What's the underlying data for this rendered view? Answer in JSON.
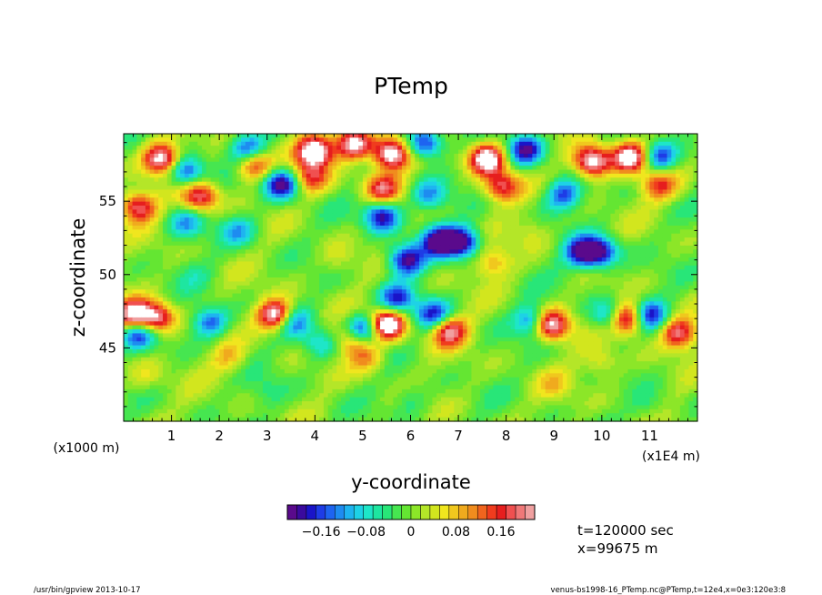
{
  "chart_data": {
    "type": "heatmap",
    "title": "PTemp",
    "xlabel": "y-coordinate",
    "ylabel": "z-coordinate",
    "x_unit_left": "(x1000 m)",
    "x_unit_right": "(x1E4 m)",
    "x_ticks": [
      "1",
      "2",
      "3",
      "4",
      "5",
      "6",
      "7",
      "8",
      "9",
      "10",
      "11"
    ],
    "y_ticks": [
      "45",
      "50",
      "55"
    ],
    "xlim": [
      0,
      12
    ],
    "ylim": [
      40,
      59.6
    ],
    "colorbar": {
      "ticks": [
        "-0.16",
        "-0.08",
        "0",
        "0.08",
        "0.16"
      ],
      "range": [
        -0.22,
        0.22
      ],
      "colors": [
        "#5a0a8c",
        "#3a0a9e",
        "#1a14c8",
        "#1e3ce6",
        "#1e64f0",
        "#1e8cf0",
        "#1eb4f0",
        "#1ed2e6",
        "#1ee6c8",
        "#1ee6a0",
        "#28e678",
        "#46e650",
        "#64e632",
        "#8ce628",
        "#b4e628",
        "#d2e61e",
        "#f0e61e",
        "#f0c81e",
        "#f0aa1e",
        "#f08c1e",
        "#f0641e",
        "#f03c1e",
        "#e61e1e",
        "#f05050",
        "#f07878",
        "#f0a0a0"
      ]
    },
    "features": [
      {
        "y": 5.5,
        "z": 46.6,
        "v": 0.3
      },
      {
        "y": 8.9,
        "z": 46.6,
        "v": 0.3
      },
      {
        "y": 10.5,
        "z": 47.0,
        "v": 0.3
      },
      {
        "y": 3.2,
        "z": 47.2,
        "v": 0.3
      },
      {
        "y": 4.0,
        "z": 58.4,
        "v": 0.3
      },
      {
        "y": 5.6,
        "z": 58.2,
        "v": 0.28
      },
      {
        "y": 4.8,
        "z": 58.9,
        "v": 0.25
      },
      {
        "y": 7.6,
        "z": 57.9,
        "v": 0.28
      },
      {
        "y": 9.8,
        "z": 57.7,
        "v": 0.28
      },
      {
        "y": 10.6,
        "z": 58.0,
        "v": 0.25
      },
      {
        "y": 0.8,
        "z": 57.9,
        "v": 0.25
      },
      {
        "y": 2.7,
        "z": 57.6,
        "v": 0.22
      },
      {
        "y": 5.4,
        "z": 55.9,
        "v": 0.18
      },
      {
        "y": 7.9,
        "z": 56.0,
        "v": 0.18
      },
      {
        "y": 3.9,
        "z": 56.6,
        "v": 0.15
      },
      {
        "y": 11.2,
        "z": 56.1,
        "v": 0.15
      },
      {
        "y": 1.6,
        "z": 55.3,
        "v": 0.2
      },
      {
        "y": 0.3,
        "z": 54.6,
        "v": 0.2
      },
      {
        "y": 0.2,
        "z": 47.2,
        "v": 0.25
      },
      {
        "y": 0.7,
        "z": 47.0,
        "v": 0.22
      },
      {
        "y": 6.8,
        "z": 46.2,
        "v": 0.22
      },
      {
        "y": 11.6,
        "z": 46.0,
        "v": 0.2
      },
      {
        "y": 4.8,
        "z": 45.6,
        "v": 0.16
      },
      {
        "y": 7.7,
        "z": 50.8,
        "v": 0.1
      },
      {
        "y": 5.1,
        "z": 44.3,
        "v": 0.1
      },
      {
        "y": 2.6,
        "z": 58.4,
        "v": -0.2
      },
      {
        "y": 6.3,
        "z": 58.9,
        "v": -0.2
      },
      {
        "y": 8.4,
        "z": 58.5,
        "v": -0.2
      },
      {
        "y": 11.2,
        "z": 58.0,
        "v": -0.18
      },
      {
        "y": 1.3,
        "z": 57.0,
        "v": -0.18
      },
      {
        "y": 3.3,
        "z": 56.2,
        "v": -0.22
      },
      {
        "y": 6.4,
        "z": 55.4,
        "v": -0.12
      },
      {
        "y": 9.2,
        "z": 55.4,
        "v": -0.15
      },
      {
        "y": 5.4,
        "z": 54.0,
        "v": -0.2
      },
      {
        "y": 5.9,
        "z": 51.0,
        "v": -0.22
      },
      {
        "y": 6.6,
        "z": 52.3,
        "v": -0.22
      },
      {
        "y": 7.1,
        "z": 52.2,
        "v": -0.2
      },
      {
        "y": 9.6,
        "z": 51.5,
        "v": -0.2
      },
      {
        "y": 10.0,
        "z": 51.5,
        "v": -0.18
      },
      {
        "y": 5.7,
        "z": 48.3,
        "v": -0.16
      },
      {
        "y": 5.0,
        "z": 46.2,
        "v": -0.24
      },
      {
        "y": 6.5,
        "z": 47.2,
        "v": -0.18
      },
      {
        "y": 8.6,
        "z": 46.8,
        "v": -0.2
      },
      {
        "y": 10.2,
        "z": 47.2,
        "v": -0.18
      },
      {
        "y": 11.0,
        "z": 47.2,
        "v": -0.18
      },
      {
        "y": 1.8,
        "z": 46.8,
        "v": -0.16
      },
      {
        "y": 3.5,
        "z": 46.8,
        "v": -0.16
      },
      {
        "y": 0.3,
        "z": 46.0,
        "v": -0.18
      },
      {
        "y": 1.3,
        "z": 53.5,
        "v": -0.1
      },
      {
        "y": 2.4,
        "z": 53.0,
        "v": -0.1
      },
      {
        "y": 4.1,
        "z": 45.2,
        "v": -0.1
      },
      {
        "y": 0.5,
        "z": 43.0,
        "v": 0.05
      },
      {
        "y": 3.0,
        "z": 42.0,
        "v": -0.04
      },
      {
        "y": 6.0,
        "z": 41.5,
        "v": -0.05
      },
      {
        "y": 9.0,
        "z": 42.5,
        "v": 0.05
      },
      {
        "y": 11.0,
        "z": 41.0,
        "v": -0.04
      },
      {
        "y": 2.2,
        "z": 44.4,
        "v": 0.08
      },
      {
        "y": 10.0,
        "z": 44.0,
        "v": 0.07
      },
      {
        "y": 4.5,
        "z": 51.0,
        "v": 0.04
      },
      {
        "y": 8.5,
        "z": 53.0,
        "v": 0.04
      },
      {
        "y": 1.5,
        "z": 50.0,
        "v": -0.03
      }
    ]
  },
  "info": {
    "time": "t=120000 sec",
    "xpos": "x=99675 m"
  },
  "footer": {
    "left": "/usr/bin/gpview   2013-10-17",
    "right": "venus-bs1998-16_PTemp.nc@PTemp,t=12e4,x=0e3:120e3:8"
  }
}
